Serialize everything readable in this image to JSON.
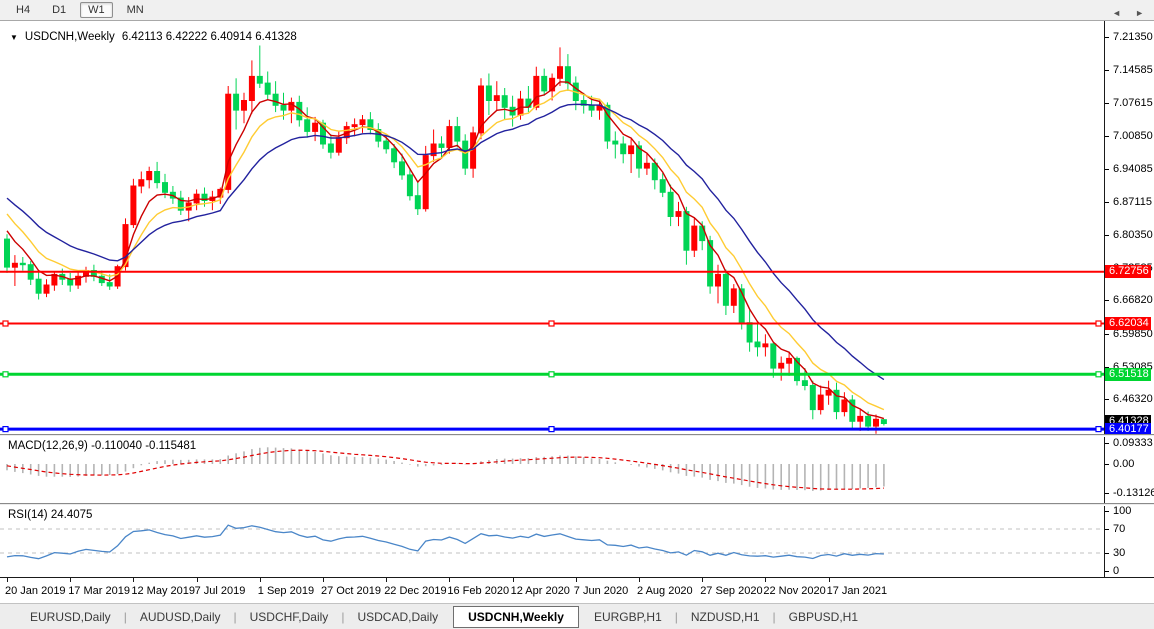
{
  "toolbar": {
    "buttons": [
      "H4",
      "D1",
      "W1",
      "MN"
    ],
    "active": "W1"
  },
  "chart": {
    "title": "USDCNH,Weekly",
    "ohlc_text": "6.42113 6.42222 6.40914 6.41328",
    "type": "candlestick-weekly",
    "price_axis_ticks": [
      "7.21350",
      "7.14585",
      "7.07615",
      "7.00850",
      "6.94085",
      "6.87115",
      "6.80350",
      "6.73585",
      "6.66820",
      "6.59850",
      "6.53085",
      "6.46320"
    ],
    "date_axis_labels": [
      "20 Jan 2019",
      "17 Mar 2019",
      "12 May 2019",
      "7 Jul 2019",
      "1 Sep 2019",
      "27 Oct 2019",
      "22 Dec 2019",
      "16 Feb 2020",
      "12 Apr 2020",
      "7 Jun 2020",
      "2 Aug 2020",
      "27 Sep 2020",
      "22 Nov 2020",
      "17 Jan 2021"
    ],
    "levels": [
      {
        "label": "6.72756",
        "price": 6.72756,
        "color": "#ff0000",
        "width": 2,
        "markers": false
      },
      {
        "label": "6.62034",
        "price": 6.62034,
        "color": "#ff0000",
        "width": 2,
        "markers": true
      },
      {
        "label": "6.51518",
        "price": 6.51518,
        "color": "#00d531",
        "width": 3,
        "markers": true
      },
      {
        "label": "6.40177",
        "price": 6.40177,
        "color": "#0000ff",
        "width": 3,
        "markers": true
      }
    ],
    "current_price": {
      "label": "6.41328",
      "price": 6.41328,
      "badge_color": "#000000"
    },
    "colors": {
      "up": "#ff0000",
      "down": "#00d455",
      "ma_fast": "#cc0000",
      "ma_mid": "#ffcc33",
      "ma_slow": "#22229e"
    },
    "pre_window_closes_estimated": [
      6.912,
      6.928,
      6.945,
      6.962,
      6.972,
      6.958,
      6.945,
      6.952,
      6.938,
      6.915,
      6.888,
      6.862,
      6.875,
      6.852,
      6.792
    ],
    "candles": [
      [
        6.795,
        6.805,
        6.725,
        6.737
      ],
      [
        6.737,
        6.762,
        6.698,
        6.745
      ],
      [
        6.745,
        6.758,
        6.73,
        6.742
      ],
      [
        6.742,
        6.75,
        6.7,
        6.712
      ],
      [
        6.712,
        6.73,
        6.67,
        6.683
      ],
      [
        6.683,
        6.712,
        6.675,
        6.7
      ],
      [
        6.7,
        6.728,
        6.688,
        6.722
      ],
      [
        6.722,
        6.734,
        6.7,
        6.712
      ],
      [
        6.712,
        6.725,
        6.686,
        6.7
      ],
      [
        6.7,
        6.726,
        6.692,
        6.718
      ],
      [
        6.718,
        6.738,
        6.705,
        6.73
      ],
      [
        6.73,
        6.742,
        6.708,
        6.718
      ],
      [
        6.718,
        6.73,
        6.698,
        6.705
      ],
      [
        6.705,
        6.722,
        6.69,
        6.698
      ],
      [
        6.698,
        6.742,
        6.692,
        6.738
      ],
      [
        6.738,
        6.838,
        6.73,
        6.825
      ],
      [
        6.825,
        6.92,
        6.818,
        6.905
      ],
      [
        6.905,
        6.935,
        6.89,
        6.918
      ],
      [
        6.918,
        6.945,
        6.9,
        6.935
      ],
      [
        6.935,
        6.955,
        6.9,
        6.912
      ],
      [
        6.912,
        6.93,
        6.88,
        6.892
      ],
      [
        6.892,
        6.905,
        6.868,
        6.88
      ],
      [
        6.88,
        6.895,
        6.845,
        6.855
      ],
      [
        6.855,
        6.882,
        6.832,
        6.87
      ],
      [
        6.87,
        6.898,
        6.855,
        6.888
      ],
      [
        6.888,
        6.902,
        6.862,
        6.875
      ],
      [
        6.875,
        6.895,
        6.855,
        6.882
      ],
      [
        6.882,
        6.902,
        6.868,
        6.898
      ],
      [
        6.898,
        7.112,
        6.89,
        7.095
      ],
      [
        7.095,
        7.128,
        7.022,
        7.062
      ],
      [
        7.062,
        7.098,
        7.035,
        7.082
      ],
      [
        7.082,
        7.165,
        7.055,
        7.132
      ],
      [
        7.132,
        7.196,
        7.108,
        7.118
      ],
      [
        7.118,
        7.142,
        7.082,
        7.095
      ],
      [
        7.095,
        7.122,
        7.058,
        7.072
      ],
      [
        7.072,
        7.098,
        7.042,
        7.062
      ],
      [
        7.062,
        7.088,
        7.035,
        7.078
      ],
      [
        7.078,
        7.092,
        7.028,
        7.042
      ],
      [
        7.042,
        7.068,
        7.005,
        7.018
      ],
      [
        7.018,
        7.048,
        6.998,
        7.035
      ],
      [
        7.035,
        7.042,
        6.982,
        6.992
      ],
      [
        6.992,
        7.012,
        6.962,
        6.975
      ],
      [
        6.975,
        7.018,
        6.968,
        7.005
      ],
      [
        7.005,
        7.038,
        6.992,
        7.028
      ],
      [
        7.028,
        7.045,
        7.008,
        7.032
      ],
      [
        7.032,
        7.052,
        7.015,
        7.042
      ],
      [
        7.042,
        7.058,
        7.012,
        7.022
      ],
      [
        7.022,
        7.035,
        6.985,
        6.998
      ],
      [
        6.998,
        7.012,
        6.972,
        6.982
      ],
      [
        6.982,
        6.992,
        6.942,
        6.955
      ],
      [
        6.955,
        6.972,
        6.918,
        6.928
      ],
      [
        6.928,
        6.942,
        6.875,
        6.885
      ],
      [
        6.885,
        6.912,
        6.845,
        6.858
      ],
      [
        6.858,
        6.988,
        6.852,
        6.968
      ],
      [
        6.968,
        7.022,
        6.955,
        6.992
      ],
      [
        6.992,
        7.008,
        6.962,
        6.985
      ],
      [
        6.985,
        7.042,
        6.972,
        7.028
      ],
      [
        7.028,
        7.048,
        6.985,
        6.998
      ],
      [
        6.998,
        7.012,
        6.928,
        6.942
      ],
      [
        6.942,
        7.028,
        6.922,
        7.015
      ],
      [
        7.015,
        7.128,
        7.002,
        7.112
      ],
      [
        7.112,
        7.138,
        7.052,
        7.082
      ],
      [
        7.082,
        7.122,
        7.062,
        7.092
      ],
      [
        7.092,
        7.108,
        7.042,
        7.068
      ],
      [
        7.068,
        7.092,
        7.028,
        7.052
      ],
      [
        7.052,
        7.102,
        7.042,
        7.085
      ],
      [
        7.085,
        7.112,
        7.058,
        7.068
      ],
      [
        7.068,
        7.152,
        7.062,
        7.132
      ],
      [
        7.132,
        7.148,
        7.092,
        7.102
      ],
      [
        7.102,
        7.138,
        7.082,
        7.128
      ],
      [
        7.128,
        7.192,
        7.112,
        7.152
      ],
      [
        7.152,
        7.178,
        7.102,
        7.118
      ],
      [
        7.118,
        7.132,
        7.062,
        7.082
      ],
      [
        7.082,
        7.098,
        7.055,
        7.072
      ],
      [
        7.072,
        7.092,
        7.048,
        7.062
      ],
      [
        7.062,
        7.082,
        7.042,
        7.072
      ],
      [
        7.072,
        7.078,
        6.982,
        6.998
      ],
      [
        6.998,
        7.018,
        6.962,
        6.992
      ],
      [
        6.992,
        7.008,
        6.952,
        6.972
      ],
      [
        6.972,
        7.002,
        6.932,
        6.988
      ],
      [
        6.988,
        6.998,
        6.922,
        6.942
      ],
      [
        6.942,
        6.972,
        6.928,
        6.952
      ],
      [
        6.952,
        6.962,
        6.898,
        6.918
      ],
      [
        6.918,
        6.932,
        6.882,
        6.892
      ],
      [
        6.892,
        6.908,
        6.822,
        6.842
      ],
      [
        6.842,
        6.872,
        6.822,
        6.852
      ],
      [
        6.852,
        6.862,
        6.742,
        6.772
      ],
      [
        6.772,
        6.838,
        6.758,
        6.822
      ],
      [
        6.822,
        6.832,
        6.772,
        6.792
      ],
      [
        6.792,
        6.802,
        6.682,
        6.698
      ],
      [
        6.698,
        6.742,
        6.662,
        6.722
      ],
      [
        6.722,
        6.732,
        6.638,
        6.658
      ],
      [
        6.658,
        6.702,
        6.642,
        6.692
      ],
      [
        6.692,
        6.702,
        6.608,
        6.622
      ],
      [
        6.622,
        6.648,
        6.562,
        6.582
      ],
      [
        6.582,
        6.622,
        6.552,
        6.572
      ],
      [
        6.572,
        6.598,
        6.552,
        6.578
      ],
      [
        6.578,
        6.582,
        6.508,
        6.528
      ],
      [
        6.528,
        6.552,
        6.502,
        6.538
      ],
      [
        6.538,
        6.562,
        6.512,
        6.548
      ],
      [
        6.548,
        6.552,
        6.492,
        6.502
      ],
      [
        6.502,
        6.528,
        6.482,
        6.492
      ],
      [
        6.492,
        6.502,
        6.422,
        6.442
      ],
      [
        6.442,
        6.492,
        6.432,
        6.472
      ],
      [
        6.472,
        6.502,
        6.452,
        6.482
      ],
      [
        6.482,
        6.498,
        6.422,
        6.438
      ],
      [
        6.438,
        6.478,
        6.428,
        6.462
      ],
      [
        6.462,
        6.472,
        6.402,
        6.418
      ],
      [
        6.418,
        6.442,
        6.398,
        6.428
      ],
      [
        6.428,
        6.438,
        6.398,
        6.408
      ],
      [
        6.408,
        6.432,
        6.392,
        6.422
      ],
      [
        6.42113,
        6.42222,
        6.40914,
        6.41328
      ]
    ]
  },
  "macd": {
    "label": "MACD(12,26,9)",
    "values": "-0.110040 -0.115481",
    "axis_ticks": [
      {
        "label": "0.09333",
        "value": 0.09333
      },
      {
        "label": "0.00",
        "value": 0.0
      },
      {
        "label": "-0.131263",
        "value": -0.131263
      }
    ],
    "hist_color": "#b4b4b4",
    "signal_color": "#e00000"
  },
  "rsi": {
    "label": "RSI(14)",
    "value": "24.4075",
    "axis_ticks": [
      {
        "label": "100",
        "value": 100
      },
      {
        "label": "70",
        "value": 70
      },
      {
        "label": "30",
        "value": 30
      },
      {
        "label": "0",
        "value": 0
      }
    ],
    "level_lines": [
      70,
      30
    ],
    "line_color": "#4a86c8"
  },
  "tabs": {
    "items": [
      "EURUSD,Daily",
      "AUDUSD,Daily",
      "USDCHF,Daily",
      "USDCAD,Daily",
      "USDCNH,Weekly",
      "EURGBP,H1",
      "NZDUSD,H1",
      "GBPUSD,H1"
    ],
    "active": "USDCNH,Weekly",
    "nav_left": "◄",
    "nav_right": "►"
  }
}
